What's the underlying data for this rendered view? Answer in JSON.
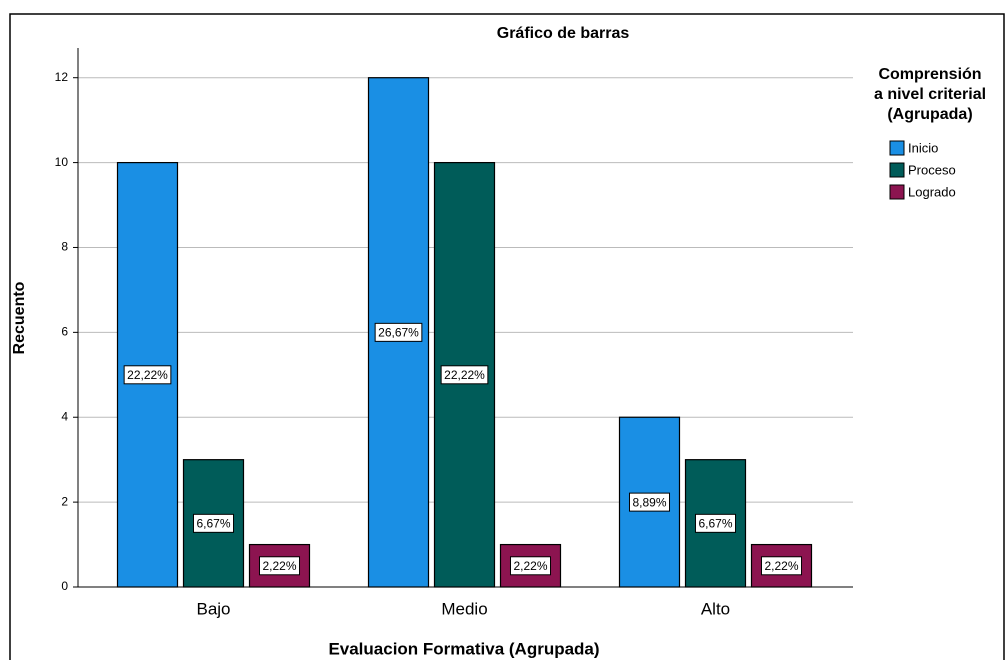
{
  "chart_data": {
    "type": "bar",
    "title": "Gráfico de barras",
    "x_label": "Evaluacion Formativa (Agrupada)",
    "y_label": "Recuento",
    "legend_title": [
      "Comprensión",
      "a nivel criterial",
      "(Agrupada)"
    ],
    "legend": "right",
    "categories": [
      "Bajo",
      "Medio",
      "Alto"
    ],
    "series": [
      {
        "name": "Inicio",
        "color": "#1a8fe4",
        "values": [
          10,
          12,
          4
        ],
        "value_labels": [
          "22,22%",
          "26,67%",
          "8,89%"
        ]
      },
      {
        "name": "Proceso",
        "color": "#005c59",
        "values": [
          3,
          10,
          3
        ],
        "value_labels": [
          "6,67%",
          "22,22%",
          "6,67%"
        ]
      },
      {
        "name": "Logrado",
        "color": "#8c1450",
        "values": [
          1,
          1,
          1
        ],
        "value_labels": [
          "2,22%",
          "2,22%",
          "2,22%"
        ]
      }
    ],
    "ylim": [
      0,
      12.7
    ],
    "yticks": [
      0,
      2,
      4,
      6,
      8,
      10,
      12
    ],
    "grid": true
  }
}
